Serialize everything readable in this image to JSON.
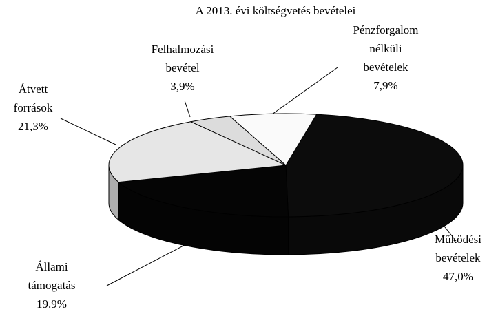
{
  "chart_data": {
    "type": "pie",
    "title": "A 2013. évi költségvetés bevételei",
    "categories": [
      "Működési bevételek",
      "Állami támogatás",
      "Átvett források",
      "Felhalmozási bevétel",
      "Pénzforgalom nélküli bevételek"
    ],
    "values": [
      47.0,
      19.9,
      21.3,
      3.9,
      7.9
    ],
    "value_labels": [
      "47,0%",
      "19.9%",
      "21,3%",
      "3,9%",
      "7,9%"
    ],
    "colors": [
      "#0c0c0c",
      "#050505",
      "#e6e6e6",
      "#dcdcdc",
      "#fafafa"
    ]
  }
}
